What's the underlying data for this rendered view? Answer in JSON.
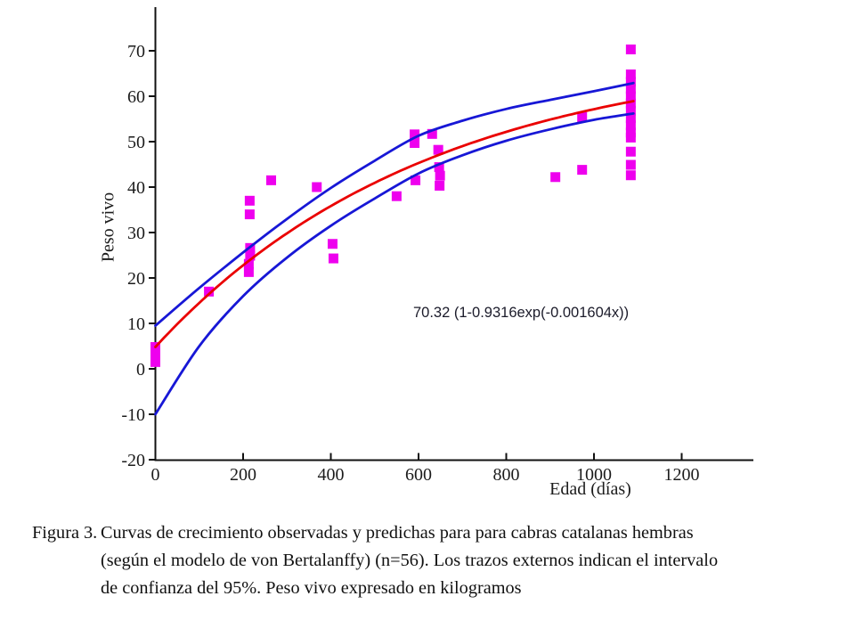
{
  "figure": {
    "label": "Figura 3.",
    "caption_lines": [
      "Curvas de crecimiento observadas y predichas para para cabras catalanas hembras",
      "(según el modelo de von Bertalanffy) (n=56). Los trazos externos indican el intervalo",
      "de confianza del 95%. Peso vivo expresado en kilogramos"
    ]
  },
  "chart_data": {
    "type": "scatter",
    "title": "",
    "xlabel": "Edad (días)",
    "ylabel": "Peso vivo",
    "xlim": [
      0,
      1360
    ],
    "ylim": [
      -20,
      79
    ],
    "x_ticks": [
      0,
      200,
      400,
      600,
      800,
      1000,
      1200
    ],
    "y_ticks": [
      -20,
      -10,
      0,
      10,
      20,
      30,
      40,
      50,
      60,
      70
    ],
    "grid": false,
    "legend_position": "none",
    "annotation": {
      "text": "70.32 (1-0.9316exp(-0.001604x))"
    },
    "model_fit": {
      "formula": "y = 70.32 (1 - 0.9316 exp(-0.001604 x))",
      "A": 70.32,
      "b": 0.9316,
      "k": 0.001604,
      "x_start": 0,
      "x_end": 1090
    },
    "point_color": "#ee00ee",
    "fit_color": "#ea0000",
    "ci_color": "#1717d6",
    "marker": "square",
    "marker_size": 11,
    "points": [
      [
        0,
        1.5
      ],
      [
        0,
        3.2
      ],
      [
        0,
        4.8
      ],
      [
        122,
        17
      ],
      [
        213,
        21.3
      ],
      [
        213,
        23.1
      ],
      [
        216,
        24.9
      ],
      [
        216,
        26.6
      ],
      [
        215,
        34
      ],
      [
        215,
        37
      ],
      [
        264,
        41.5
      ],
      [
        368,
        40
      ],
      [
        404,
        27.5
      ],
      [
        406,
        24.3
      ],
      [
        550,
        38
      ],
      [
        591,
        51.6
      ],
      [
        591,
        49.7
      ],
      [
        593,
        41.5
      ],
      [
        631,
        51.7
      ],
      [
        645,
        48.2
      ],
      [
        647,
        44.4
      ],
      [
        649,
        42.5
      ],
      [
        648,
        40.3
      ],
      [
        912,
        42.2
      ],
      [
        973,
        43.8
      ],
      [
        973,
        55.4
      ],
      [
        1084,
        70.3
      ],
      [
        1084,
        64.8
      ],
      [
        1084,
        63.2
      ],
      [
        1084,
        61.6
      ],
      [
        1084,
        60.0
      ],
      [
        1084,
        58.4
      ],
      [
        1084,
        56.8
      ],
      [
        1084,
        55.2
      ],
      [
        1084,
        53.6
      ],
      [
        1084,
        52.0
      ],
      [
        1084,
        50.9
      ],
      [
        1084,
        47.8
      ],
      [
        1084,
        44.9
      ],
      [
        1084,
        42.6
      ]
    ],
    "ci_upper": [
      [
        0,
        9.5
      ],
      [
        100,
        17.8
      ],
      [
        200,
        25.6
      ],
      [
        300,
        33.0
      ],
      [
        400,
        39.8
      ],
      [
        500,
        45.8
      ],
      [
        600,
        51.3
      ],
      [
        700,
        54.6
      ],
      [
        800,
        57.2
      ],
      [
        900,
        59.2
      ],
      [
        1000,
        61.1
      ],
      [
        1090,
        62.9
      ]
    ],
    "ci_lower": [
      [
        0,
        -10.0
      ],
      [
        100,
        5.0
      ],
      [
        200,
        16.0
      ],
      [
        300,
        24.5
      ],
      [
        400,
        31.5
      ],
      [
        500,
        37.5
      ],
      [
        600,
        43.0
      ],
      [
        700,
        47.0
      ],
      [
        800,
        50.2
      ],
      [
        900,
        52.7
      ],
      [
        1000,
        54.8
      ],
      [
        1090,
        56.2
      ]
    ]
  }
}
